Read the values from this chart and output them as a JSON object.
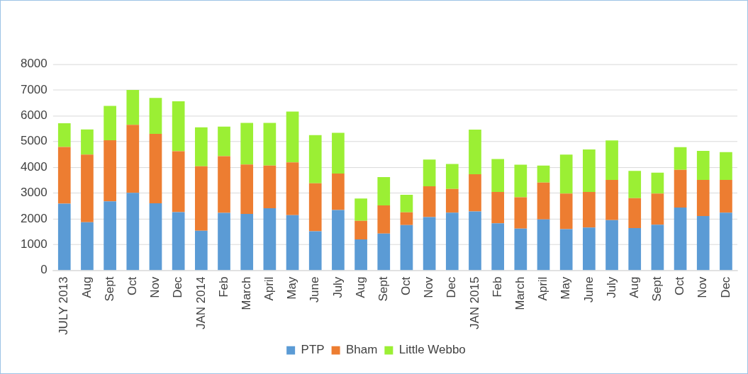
{
  "chart_data": {
    "type": "bar",
    "stacked": true,
    "categories": [
      "JULY 2013",
      "Aug",
      "Sept",
      "Oct",
      "Nov",
      "Dec",
      "JAN 2014",
      "Feb",
      "March",
      "April",
      "May",
      "June",
      "July",
      "Aug",
      "Sept",
      "Oct",
      "Nov",
      "Dec",
      "JAN 2015",
      "Feb",
      "March",
      "April",
      "May",
      "June",
      "July",
      "Aug",
      "Sept",
      "Oct",
      "Nov",
      "Dec"
    ],
    "series": [
      {
        "name": "PTP",
        "color": "#5b9bd5",
        "values": [
          2590,
          1870,
          2680,
          3010,
          2600,
          2260,
          1540,
          2230,
          2190,
          2410,
          2140,
          1520,
          2340,
          1200,
          1430,
          1760,
          2070,
          2240,
          2290,
          1830,
          1620,
          1980,
          1600,
          1660,
          1950,
          1640,
          1770,
          2440,
          2110,
          2240
        ]
      },
      {
        "name": "Bham",
        "color": "#ed7d31",
        "values": [
          2200,
          2620,
          2370,
          2640,
          2700,
          2360,
          2500,
          2200,
          1920,
          1660,
          2050,
          1860,
          1420,
          720,
          1090,
          490,
          1190,
          920,
          1440,
          1210,
          1220,
          1430,
          1380,
          1380,
          1560,
          1160,
          1210,
          1460,
          1400,
          1270
        ]
      },
      {
        "name": "Little Webbo",
        "color": "#9bef34",
        "values": [
          920,
          980,
          1330,
          1350,
          1390,
          1940,
          1510,
          1150,
          1610,
          1650,
          1970,
          1870,
          1580,
          870,
          1100,
          680,
          1040,
          970,
          1730,
          1280,
          1260,
          660,
          1510,
          1650,
          1530,
          1060,
          810,
          880,
          1130,
          1080
        ]
      }
    ],
    "ylim": [
      0,
      8000
    ],
    "yticks": [
      0,
      1000,
      2000,
      3000,
      4000,
      5000,
      6000,
      7000,
      8000
    ],
    "grid": "y",
    "legend": "bottom"
  }
}
